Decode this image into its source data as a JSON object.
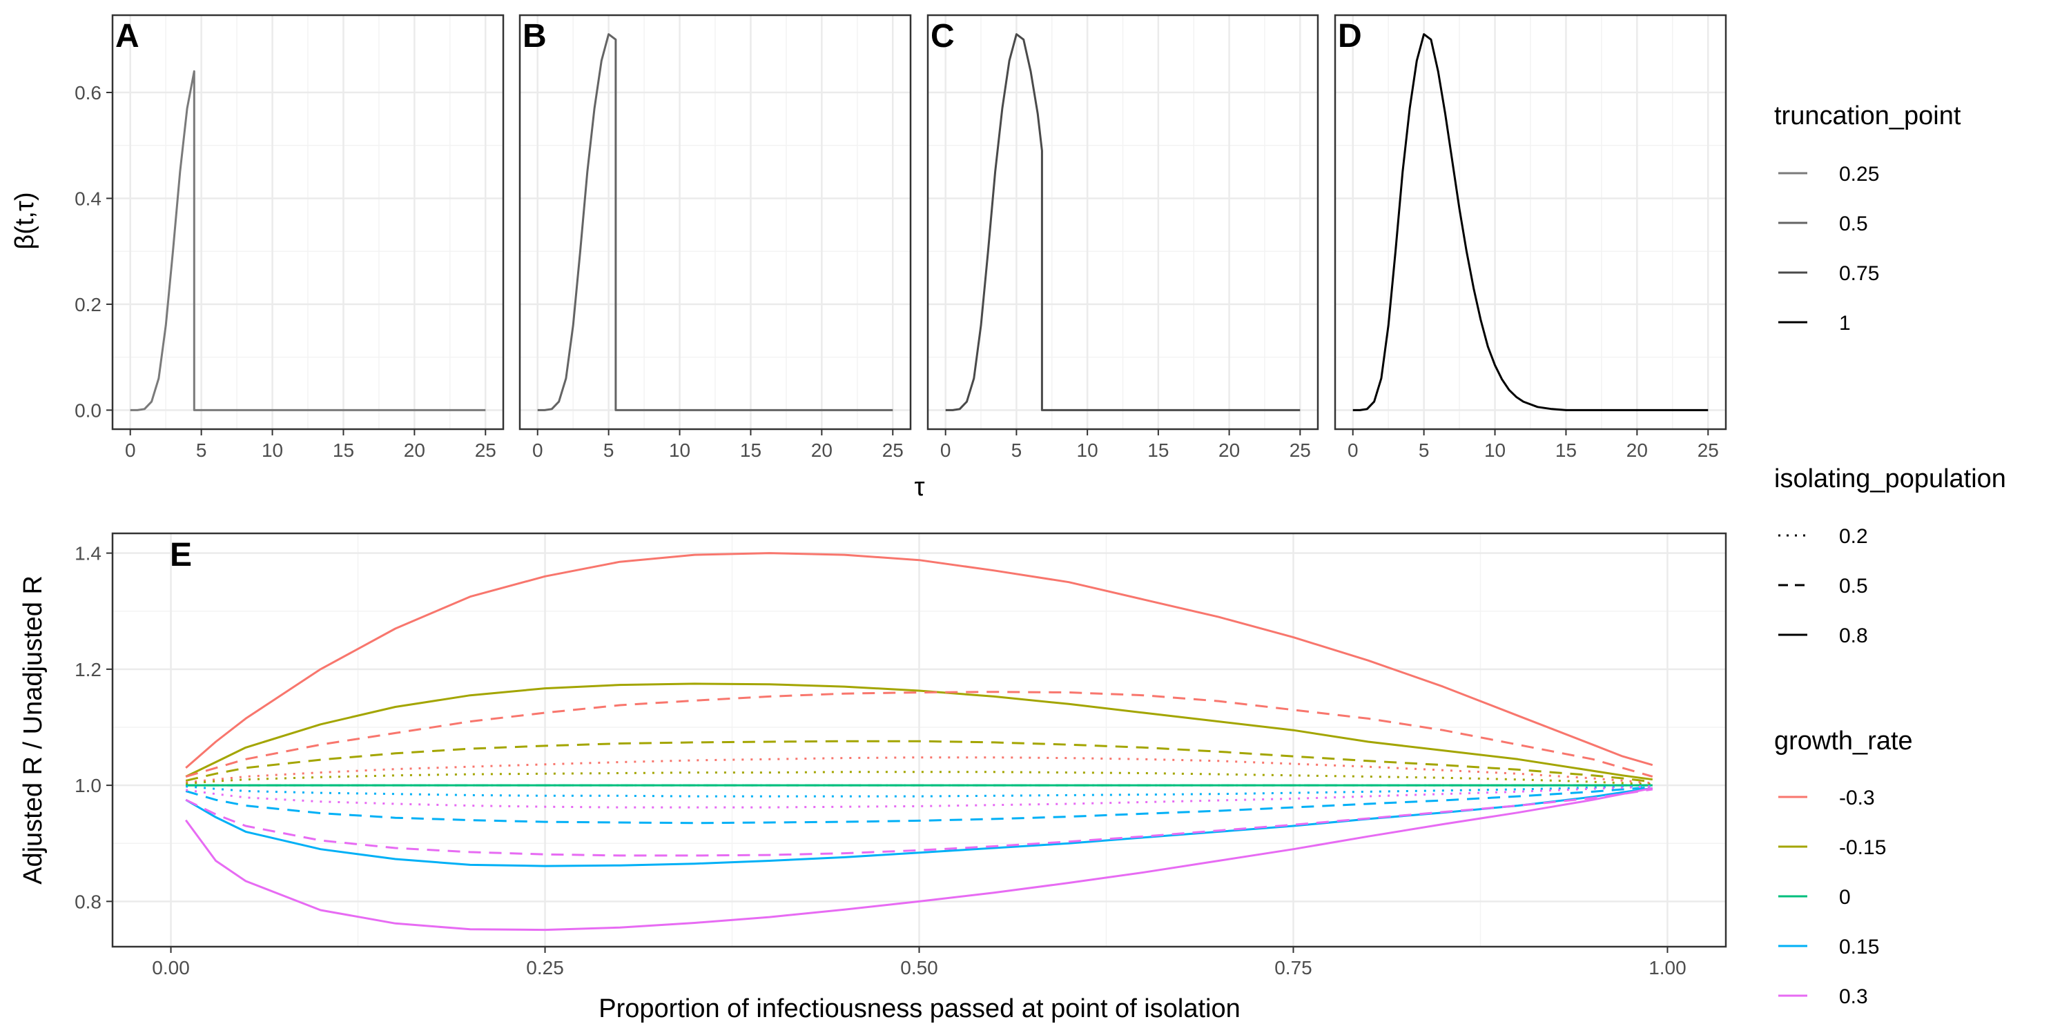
{
  "chart_data": [
    {
      "panel": "A",
      "type": "line",
      "truncation_point": "0.25",
      "xlabel": "τ",
      "ylabel": "β(t,τ)",
      "xlim": [
        -1.25,
        26.25
      ],
      "ylim": [
        -0.036,
        0.746
      ],
      "xticks": [
        "0",
        "5",
        "10",
        "15",
        "20",
        "25"
      ],
      "yticks": [
        "0.0",
        "0.2",
        "0.4",
        "0.6"
      ],
      "x": [
        0,
        0.5,
        1,
        1.5,
        2,
        2.5,
        3,
        3.5,
        4,
        4.5,
        4.5,
        10,
        15,
        20,
        25
      ],
      "y": [
        0,
        0,
        0.002,
        0.016,
        0.06,
        0.16,
        0.3,
        0.45,
        0.57,
        0.64,
        0,
        0,
        0,
        0,
        0
      ]
    },
    {
      "panel": "B",
      "type": "line",
      "truncation_point": "0.5",
      "xlabel": "τ",
      "ylabel": "",
      "xlim": [
        -1.25,
        26.25
      ],
      "ylim": [
        -0.036,
        0.746
      ],
      "xticks": [
        "0",
        "5",
        "10",
        "15",
        "20",
        "25"
      ],
      "x": [
        0,
        0.5,
        1,
        1.5,
        2,
        2.5,
        3,
        3.5,
        4,
        4.5,
        5,
        5.5,
        5.5,
        10,
        15,
        20,
        25
      ],
      "y": [
        0,
        0,
        0.002,
        0.016,
        0.06,
        0.16,
        0.3,
        0.45,
        0.57,
        0.66,
        0.71,
        0.7,
        0,
        0,
        0,
        0,
        0
      ]
    },
    {
      "panel": "C",
      "type": "line",
      "truncation_point": "0.75",
      "xlabel": "τ",
      "ylabel": "",
      "xlim": [
        -1.25,
        26.25
      ],
      "ylim": [
        -0.036,
        0.746
      ],
      "xticks": [
        "0",
        "5",
        "10",
        "15",
        "20",
        "25"
      ],
      "x": [
        0,
        0.5,
        1,
        1.5,
        2,
        2.5,
        3,
        3.5,
        4,
        4.5,
        5,
        5.5,
        6,
        6.5,
        6.8,
        6.8,
        10,
        15,
        20,
        25
      ],
      "y": [
        0,
        0,
        0.002,
        0.016,
        0.06,
        0.16,
        0.3,
        0.45,
        0.57,
        0.66,
        0.71,
        0.7,
        0.64,
        0.56,
        0.49,
        0,
        0,
        0,
        0,
        0
      ]
    },
    {
      "panel": "D",
      "type": "line",
      "truncation_point": "1",
      "xlabel": "τ",
      "ylabel": "",
      "xlim": [
        -1.25,
        26.25
      ],
      "ylim": [
        -0.036,
        0.746
      ],
      "xticks": [
        "0",
        "5",
        "10",
        "15",
        "20",
        "25"
      ],
      "x": [
        0,
        0.5,
        1,
        1.5,
        2,
        2.5,
        3,
        3.5,
        4,
        4.5,
        5,
        5.5,
        6,
        6.5,
        7,
        7.5,
        8,
        8.5,
        9,
        9.5,
        10,
        10.5,
        11,
        11.5,
        12,
        13,
        14,
        15,
        20,
        25
      ],
      "y": [
        0,
        0,
        0.002,
        0.016,
        0.06,
        0.16,
        0.3,
        0.45,
        0.57,
        0.66,
        0.71,
        0.7,
        0.64,
        0.56,
        0.47,
        0.38,
        0.3,
        0.23,
        0.17,
        0.12,
        0.085,
        0.058,
        0.038,
        0.025,
        0.016,
        0.006,
        0.002,
        0,
        0,
        0
      ]
    },
    {
      "panel": "E",
      "type": "line",
      "xlabel": "Proportion of infectiousness passed at point of isolation",
      "ylabel": "Adjusted R / Unadjusted R",
      "xlim": [
        -0.039,
        1.039
      ],
      "ylim": [
        0.722,
        1.434
      ],
      "xticks": [
        "0.00",
        "0.25",
        "0.50",
        "0.75",
        "1.00"
      ],
      "yticks": [
        "0.8",
        "1.0",
        "1.2",
        "1.4"
      ],
      "x": [
        0.01,
        0.03,
        0.05,
        0.1,
        0.15,
        0.2,
        0.25,
        0.3,
        0.35,
        0.4,
        0.45,
        0.5,
        0.55,
        0.6,
        0.65,
        0.7,
        0.75,
        0.8,
        0.85,
        0.9,
        0.95,
        0.97,
        0.99
      ],
      "series": [
        {
          "growth_rate": "-0.3",
          "isolating_population": "0.8",
          "values": [
            1.03,
            1.075,
            1.115,
            1.2,
            1.27,
            1.325,
            1.36,
            1.385,
            1.397,
            1.4,
            1.397,
            1.388,
            1.37,
            1.35,
            1.32,
            1.29,
            1.255,
            1.215,
            1.17,
            1.12,
            1.07,
            1.05,
            1.035
          ]
        },
        {
          "growth_rate": "-0.15",
          "isolating_population": "0.8",
          "values": [
            1.015,
            1.04,
            1.065,
            1.105,
            1.135,
            1.155,
            1.167,
            1.173,
            1.175,
            1.174,
            1.17,
            1.163,
            1.153,
            1.14,
            1.125,
            1.11,
            1.095,
            1.075,
            1.06,
            1.045,
            1.025,
            1.017,
            1.01
          ]
        },
        {
          "growth_rate": "0",
          "isolating_population": "0.8",
          "values": [
            1.0,
            1.0,
            1.0,
            1.0,
            1.0,
            1.0,
            1.0,
            1.0,
            1.0,
            1.0,
            1.0,
            1.0,
            1.0,
            1.0,
            1.0,
            1.0,
            1.0,
            1.0,
            1.0,
            1.0,
            1.0,
            1.0,
            1.0
          ]
        },
        {
          "growth_rate": "0.15",
          "isolating_population": "0.8",
          "values": [
            0.975,
            0.945,
            0.92,
            0.89,
            0.873,
            0.863,
            0.861,
            0.862,
            0.865,
            0.87,
            0.876,
            0.884,
            0.892,
            0.9,
            0.91,
            0.92,
            0.93,
            0.942,
            0.953,
            0.965,
            0.98,
            0.988,
            0.995
          ]
        },
        {
          "growth_rate": "0.3",
          "isolating_population": "0.8",
          "values": [
            0.94,
            0.87,
            0.835,
            0.785,
            0.762,
            0.752,
            0.751,
            0.755,
            0.763,
            0.773,
            0.786,
            0.8,
            0.815,
            0.832,
            0.85,
            0.87,
            0.89,
            0.912,
            0.933,
            0.953,
            0.975,
            0.985,
            0.995
          ]
        },
        {
          "growth_rate": "-0.3",
          "isolating_population": "0.5",
          "values": [
            1.015,
            1.03,
            1.045,
            1.07,
            1.09,
            1.11,
            1.125,
            1.138,
            1.146,
            1.153,
            1.158,
            1.16,
            1.161,
            1.16,
            1.155,
            1.145,
            1.13,
            1.115,
            1.095,
            1.07,
            1.045,
            1.03,
            1.015
          ]
        },
        {
          "growth_rate": "-0.15",
          "isolating_population": "0.5",
          "values": [
            1.008,
            1.02,
            1.03,
            1.044,
            1.055,
            1.063,
            1.068,
            1.072,
            1.074,
            1.075,
            1.076,
            1.076,
            1.074,
            1.07,
            1.065,
            1.058,
            1.05,
            1.042,
            1.035,
            1.027,
            1.017,
            1.012,
            1.006
          ]
        },
        {
          "growth_rate": "0",
          "isolating_population": "0.5",
          "values": [
            1.0,
            1.0,
            1.0,
            1.0,
            1.0,
            1.0,
            1.0,
            1.0,
            1.0,
            1.0,
            1.0,
            1.0,
            1.0,
            1.0,
            1.0,
            1.0,
            1.0,
            1.0,
            1.0,
            1.0,
            1.0,
            1.0,
            1.0
          ]
        },
        {
          "growth_rate": "0.15",
          "isolating_population": "0.5",
          "values": [
            0.99,
            0.975,
            0.965,
            0.952,
            0.944,
            0.94,
            0.937,
            0.936,
            0.935,
            0.936,
            0.937,
            0.939,
            0.942,
            0.946,
            0.951,
            0.956,
            0.962,
            0.968,
            0.974,
            0.981,
            0.989,
            0.993,
            0.997
          ]
        },
        {
          "growth_rate": "0.3",
          "isolating_population": "0.5",
          "values": [
            0.975,
            0.95,
            0.93,
            0.905,
            0.892,
            0.885,
            0.881,
            0.879,
            0.879,
            0.88,
            0.883,
            0.888,
            0.895,
            0.903,
            0.912,
            0.922,
            0.932,
            0.943,
            0.954,
            0.965,
            0.978,
            0.985,
            0.993
          ]
        },
        {
          "growth_rate": "-0.3",
          "isolating_population": "0.2",
          "values": [
            1.005,
            1.01,
            1.015,
            1.022,
            1.028,
            1.032,
            1.036,
            1.04,
            1.043,
            1.045,
            1.047,
            1.048,
            1.048,
            1.047,
            1.045,
            1.042,
            1.037,
            1.032,
            1.026,
            1.02,
            1.012,
            1.008,
            1.004
          ]
        },
        {
          "growth_rate": "-0.15",
          "isolating_population": "0.2",
          "values": [
            1.003,
            1.007,
            1.01,
            1.014,
            1.017,
            1.019,
            1.02,
            1.021,
            1.022,
            1.022,
            1.023,
            1.023,
            1.023,
            1.022,
            1.021,
            1.019,
            1.017,
            1.015,
            1.013,
            1.01,
            1.006,
            1.004,
            1.002
          ]
        },
        {
          "growth_rate": "0",
          "isolating_population": "0.2",
          "values": [
            1.0,
            1.0,
            1.0,
            1.0,
            1.0,
            1.0,
            1.0,
            1.0,
            1.0,
            1.0,
            1.0,
            1.0,
            1.0,
            1.0,
            1.0,
            1.0,
            1.0,
            1.0,
            1.0,
            1.0,
            1.0,
            1.0,
            1.0
          ]
        },
        {
          "growth_rate": "0.15",
          "isolating_population": "0.2",
          "values": [
            0.998,
            0.994,
            0.99,
            0.987,
            0.985,
            0.983,
            0.982,
            0.982,
            0.981,
            0.981,
            0.981,
            0.981,
            0.982,
            0.983,
            0.984,
            0.985,
            0.987,
            0.989,
            0.991,
            0.993,
            0.996,
            0.998,
            0.999
          ]
        },
        {
          "growth_rate": "0.3",
          "isolating_population": "0.2",
          "values": [
            0.992,
            0.985,
            0.979,
            0.972,
            0.968,
            0.965,
            0.963,
            0.962,
            0.962,
            0.962,
            0.963,
            0.964,
            0.966,
            0.968,
            0.971,
            0.974,
            0.977,
            0.981,
            0.985,
            0.989,
            0.994,
            0.996,
            0.998
          ]
        }
      ]
    }
  ],
  "panel_tags": [
    "A",
    "B",
    "C",
    "D",
    "E"
  ],
  "legend": {
    "truncation_point": {
      "title": "truncation_point",
      "labels": [
        "0.25",
        "0.5",
        "0.75",
        "1"
      ],
      "colors": [
        "#7a7a7a",
        "#646464",
        "#4a4a4a",
        "#000000"
      ]
    },
    "isolating_population": {
      "title": "isolating_population",
      "labels": [
        "0.2",
        "0.5",
        "0.8"
      ],
      "linetypes": [
        "dotted",
        "dashed",
        "solid"
      ]
    },
    "growth_rate": {
      "title": "growth_rate",
      "labels": [
        "-0.3",
        "-0.15",
        "0",
        "0.15",
        "0.3"
      ],
      "colors": [
        "#F8766D",
        "#A3A500",
        "#00BF7D",
        "#00B0F6",
        "#E76BF3"
      ]
    }
  },
  "style": {
    "grid_on": true,
    "panel_border": "#333333",
    "grid_color": "#ebebeb"
  }
}
